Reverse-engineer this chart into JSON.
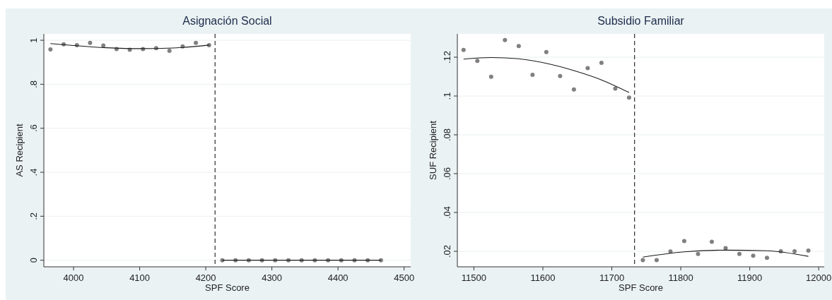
{
  "chart_data": [
    {
      "type": "scatter",
      "title": "Asignación Social",
      "xlabel": "SPF Score",
      "ylabel": "AS Recipient",
      "xlim": [
        3955,
        4510
      ],
      "xticks": [
        4000,
        4100,
        4200,
        4300,
        4400,
        4500
      ],
      "ylim": [
        -0.03,
        1.029
      ],
      "yticks": [
        {
          "value": 0,
          "label": "0"
        },
        {
          "value": 0.2,
          "label": ".2"
        },
        {
          "value": 0.4,
          "label": ".4"
        },
        {
          "value": 0.6,
          "label": ".6"
        },
        {
          "value": 0.8,
          "label": ".8"
        },
        {
          "value": 1,
          "label": "1"
        }
      ],
      "grid": "y",
      "ref_lines": [
        {
          "axis": "x",
          "value": 4214,
          "line_style": "dashed",
          "color": "#000000"
        }
      ],
      "series": [
        {
          "type": "scatter",
          "marker": "circle",
          "color": "#808080",
          "x": [
            3965,
            3985,
            4005,
            4025,
            4045,
            4065,
            4085,
            4105,
            4125,
            4145,
            4165,
            4185,
            4205
          ],
          "values": [
            0.958,
            0.982,
            0.978,
            0.988,
            0.976,
            0.96,
            0.957,
            0.96,
            0.964,
            0.952,
            0.972,
            0.988,
            0.978
          ]
        },
        {
          "type": "scatter",
          "marker": "circle",
          "color": "#808080",
          "x": [
            4225,
            4245,
            4265,
            4285,
            4305,
            4325,
            4345,
            4365,
            4385,
            4405,
            4425,
            4445,
            4465
          ],
          "values": [
            0,
            0,
            0,
            0,
            0,
            0,
            0,
            0,
            0,
            0,
            0,
            0,
            0
          ]
        },
        {
          "type": "line",
          "marker": "none",
          "color": "#1a1a1a",
          "x": [
            3965,
            4000,
            4050,
            4100,
            4150,
            4205
          ],
          "values": [
            0.985,
            0.976,
            0.966,
            0.962,
            0.965,
            0.978
          ]
        },
        {
          "type": "line",
          "marker": "none",
          "color": "#1a1a1a",
          "x": [
            4225,
            4465
          ],
          "values": [
            0,
            0
          ]
        }
      ]
    },
    {
      "type": "scatter",
      "title": "Subsidio Familiar",
      "xlabel": "SPF Score",
      "ylabel": "SUF Recipient",
      "xlim": [
        11476,
        12008
      ],
      "xticks": [
        11500,
        11600,
        11700,
        11800,
        11900,
        12000
      ],
      "ylim": [
        0.012,
        0.132
      ],
      "yticks": [
        {
          "value": 0.02,
          "label": ".02"
        },
        {
          "value": 0.04,
          "label": ".04"
        },
        {
          "value": 0.06,
          "label": ".06"
        },
        {
          "value": 0.08,
          "label": ".08"
        },
        {
          "value": 0.1,
          "label": ".1"
        },
        {
          "value": 0.12,
          "label": ".12"
        }
      ],
      "grid": "y",
      "ref_lines": [
        {
          "axis": "x",
          "value": 11733,
          "line_style": "dashed",
          "color": "#000000"
        }
      ],
      "series": [
        {
          "type": "scatter",
          "marker": "circle",
          "color": "#808080",
          "x": [
            11485,
            11505,
            11525,
            11545,
            11565,
            11585,
            11605,
            11625,
            11645,
            11665,
            11685,
            11705,
            11725
          ],
          "values": [
            0.1237,
            0.1181,
            0.1099,
            0.1288,
            0.1257,
            0.1109,
            0.1226,
            0.1103,
            0.1034,
            0.1144,
            0.1171,
            0.1038,
            0.0992
          ]
        },
        {
          "type": "scatter",
          "marker": "circle",
          "color": "#808080",
          "x": [
            11745,
            11765,
            11785,
            11805,
            11825,
            11845,
            11865,
            11885,
            11905,
            11925,
            11945,
            11965,
            11985
          ],
          "values": [
            0.0155,
            0.0155,
            0.0199,
            0.0253,
            0.0186,
            0.0249,
            0.0216,
            0.0186,
            0.0177,
            0.0166,
            0.02,
            0.02,
            0.0204
          ]
        },
        {
          "type": "line",
          "marker": "none",
          "color": "#1a1a1a",
          "x": [
            11485,
            11525,
            11565,
            11605,
            11645,
            11685,
            11725
          ],
          "values": [
            0.119,
            0.1198,
            0.1192,
            0.1168,
            0.1131,
            0.1083,
            0.1018
          ]
        },
        {
          "type": "line",
          "marker": "none",
          "color": "#1a1a1a",
          "x": [
            11745,
            11805,
            11865,
            11925,
            11985
          ],
          "values": [
            0.017,
            0.0197,
            0.0206,
            0.0203,
            0.0174
          ]
        }
      ]
    }
  ]
}
